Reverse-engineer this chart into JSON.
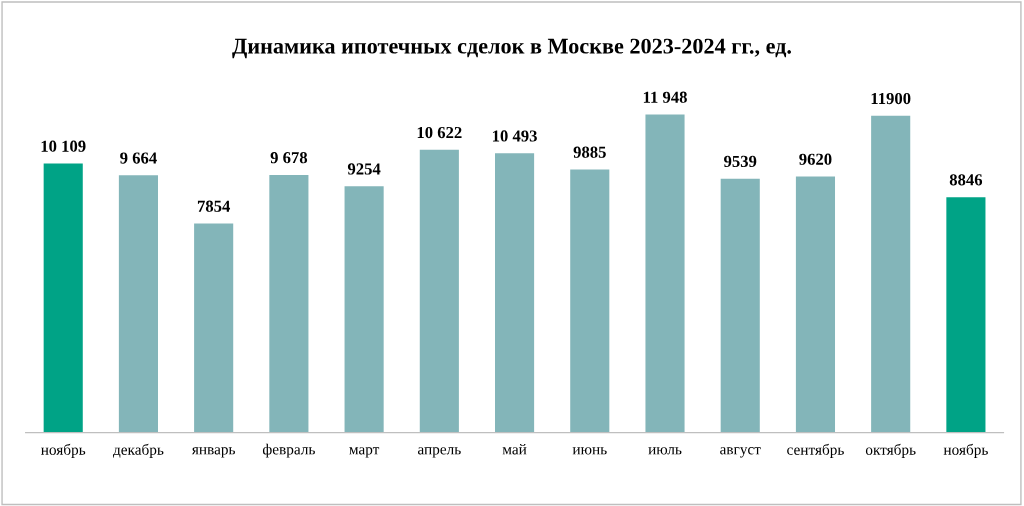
{
  "chart_data": {
    "type": "bar",
    "title": "Динамика ипотечных сделок в Москве 2023-2024 гг., ед.",
    "categories": [
      "ноябрь",
      "декабрь",
      "январь",
      "февраль",
      "март",
      "апрель",
      "май",
      "июнь",
      "июль",
      "август",
      "сентябрь",
      "октябрь",
      "ноябрь"
    ],
    "values": [
      10109,
      9664,
      7854,
      9678,
      9254,
      10622,
      10493,
      9885,
      11948,
      9539,
      9620,
      11900,
      8846
    ],
    "colors": [
      "#00a386",
      "#83b5b9",
      "#83b5b9",
      "#83b5b9",
      "#83b5b9",
      "#83b5b9",
      "#83b5b9",
      "#83b5b9",
      "#83b5b9",
      "#83b5b9",
      "#83b5b9",
      "#83b5b9",
      "#00a386"
    ],
    "value_labels": [
      "10 109",
      "9 664",
      "7854",
      "9 678",
      "9254",
      "10 622",
      "10 493",
      "9885",
      "11 948",
      "9539",
      "9620",
      "11900",
      "8846"
    ],
    "grid": false,
    "legend": false
  }
}
